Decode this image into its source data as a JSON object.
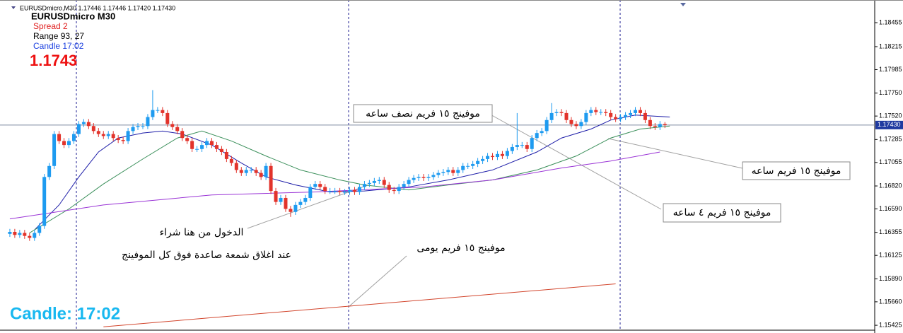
{
  "chart_data": {
    "type": "candlestick",
    "title": "EURUSDmicro,M30  1.17446 1.17446 1.17420 1.17430",
    "info": {
      "symbol": "EURUSDmicro  M30",
      "spread": "Spread  2",
      "range": "Range   93, 27",
      "candle": "Candle  17:02",
      "price": "1.1743",
      "big_candle": "Candle:  17:02"
    },
    "up_color": "#1e9bf0",
    "down_color": "#e2332b",
    "xlim": [
      -2,
      175.6
    ],
    "ylim": [
      1.15376,
      1.18682
    ],
    "yticks": [
      1.18455,
      {
        "value": 1.18215,
        "label": "1.18215"
      },
      1.17985,
      {
        "value": 1.1775,
        "label": "1.17750"
      },
      {
        "value": 1.1752,
        "label": "1.17520"
      },
      1.17285,
      1.17055,
      {
        "value": 1.1682,
        "label": "1.16820"
      },
      {
        "value": 1.1659,
        "label": "1.16590"
      },
      1.16355,
      1.16125,
      {
        "value": 1.1589,
        "label": "1.15890"
      },
      {
        "value": 1.1566,
        "label": "1.15660"
      },
      1.15425
    ],
    "price_line": {
      "value": 1.1743,
      "label": "1.17430"
    },
    "open": [
      1.1634,
      1.1636,
      1.1633,
      1.1635,
      1.1632,
      1.163,
      1.1635,
      1.1642,
      1.1691,
      1.1702,
      1.1734,
      1.1727,
      1.1723,
      1.1727,
      1.1734,
      1.1744,
      1.1746,
      1.1742,
      1.1737,
      1.1734,
      1.1732,
      1.1734,
      1.173,
      1.1728,
      1.1727,
      1.1737,
      1.1741,
      1.1742,
      1.1742,
      1.1751,
      1.1758,
      1.1758,
      1.1755,
      1.1744,
      1.1741,
      1.1737,
      1.173,
      1.1727,
      1.1719,
      1.1719,
      1.1723,
      1.1727,
      1.1723,
      1.1719,
      1.1716,
      1.1709,
      1.1705,
      1.1698,
      1.1695,
      1.1698,
      1.1698,
      1.1695,
      1.1691,
      1.1702,
      1.1677,
      1.1666,
      1.167,
      1.1659,
      1.1656,
      1.1663,
      1.1666,
      1.167,
      1.1681,
      1.1684,
      1.1681,
      1.1677,
      1.1677,
      1.1677,
      1.1676,
      1.1676,
      1.1678,
      1.1676,
      1.1681,
      1.1684,
      1.1685,
      1.1687,
      1.1688,
      1.1683,
      1.1678,
      1.1677,
      1.1681,
      1.1684,
      1.1688,
      1.169,
      1.1691,
      1.169,
      1.1691,
      1.1693,
      1.1695,
      1.1696,
      1.1698,
      1.1695,
      1.1698,
      1.1702,
      1.1702,
      1.1704,
      1.1707,
      1.1709,
      1.1712,
      1.1711,
      1.1714,
      1.1712,
      1.1717,
      1.1721,
      1.1723,
      1.1723,
      1.1719,
      1.173,
      1.1735,
      1.1737,
      1.1748,
      1.1755,
      1.1756,
      1.1755,
      1.1748,
      1.1744,
      1.1742,
      1.1746,
      1.1755,
      1.1758,
      1.1756,
      1.1756,
      1.1755,
      1.1751,
      1.1749,
      1.1751,
      1.1753,
      1.1755,
      1.1758,
      1.1755,
      1.1748,
      1.1742,
      1.1741,
      1.1744
    ],
    "high": [
      1.1639,
      1.1639,
      1.1638,
      1.1638,
      1.1635,
      1.1638,
      1.1645,
      1.1694,
      1.1705,
      1.1737,
      1.1737,
      1.173,
      1.173,
      1.1737,
      1.1747,
      1.1749,
      1.1749,
      1.1745,
      1.174,
      1.1737,
      1.1737,
      1.1737,
      1.1733,
      1.1731,
      1.174,
      1.1744,
      1.1745,
      1.1745,
      1.1754,
      1.1778,
      1.1761,
      1.1761,
      1.1758,
      1.1747,
      1.1744,
      1.174,
      1.1733,
      1.173,
      1.1722,
      1.1726,
      1.173,
      1.173,
      1.1726,
      1.1722,
      1.1719,
      1.1712,
      1.1708,
      1.1701,
      1.1701,
      1.1701,
      1.1701,
      1.1698,
      1.1705,
      1.1705,
      1.168,
      1.1673,
      1.1673,
      1.1662,
      1.1666,
      1.1669,
      1.1673,
      1.1684,
      1.1687,
      1.1687,
      1.1684,
      1.168,
      1.168,
      1.168,
      1.1679,
      1.1681,
      1.1681,
      1.1684,
      1.1687,
      1.1688,
      1.169,
      1.1691,
      1.1691,
      1.1686,
      1.1681,
      1.1684,
      1.1687,
      1.1691,
      1.1693,
      1.1694,
      1.1694,
      1.1694,
      1.1696,
      1.1698,
      1.1699,
      1.1701,
      1.1701,
      1.1701,
      1.1705,
      1.1705,
      1.1707,
      1.171,
      1.1712,
      1.1715,
      1.1715,
      1.1717,
      1.1717,
      1.172,
      1.1724,
      1.1755,
      1.1726,
      1.1726,
      1.1733,
      1.1738,
      1.174,
      1.1751,
      1.1765,
      1.1759,
      1.1759,
      1.1758,
      1.1751,
      1.1747,
      1.1749,
      1.1758,
      1.1761,
      1.1761,
      1.1759,
      1.1759,
      1.1758,
      1.1754,
      1.1754,
      1.1756,
      1.1758,
      1.1761,
      1.1761,
      1.1758,
      1.1751,
      1.1745,
      1.1747,
      1.1746
    ],
    "low": [
      1.1631,
      1.163,
      1.163,
      1.1629,
      1.1627,
      1.1627,
      1.1632,
      1.1639,
      1.1688,
      1.1699,
      1.1724,
      1.172,
      1.172,
      1.1724,
      1.1731,
      1.1741,
      1.1739,
      1.1734,
      1.1731,
      1.1729,
      1.1729,
      1.1727,
      1.1725,
      1.1724,
      1.1724,
      1.1734,
      1.1738,
      1.1739,
      1.1739,
      1.1748,
      1.1755,
      1.1752,
      1.1741,
      1.1738,
      1.1734,
      1.1727,
      1.1724,
      1.1716,
      1.1716,
      1.1716,
      1.172,
      1.172,
      1.1716,
      1.1713,
      1.1706,
      1.1702,
      1.1695,
      1.1692,
      1.1692,
      1.1695,
      1.1692,
      1.1688,
      1.1688,
      1.1674,
      1.1663,
      1.1663,
      1.1656,
      1.1651,
      1.1653,
      1.166,
      1.1663,
      1.1667,
      1.1678,
      1.1678,
      1.1674,
      1.1674,
      1.1674,
      1.1673,
      1.1673,
      1.1673,
      1.1673,
      1.1673,
      1.1678,
      1.1681,
      1.1682,
      1.1684,
      1.168,
      1.1675,
      1.1674,
      1.1674,
      1.1678,
      1.1681,
      1.1685,
      1.1687,
      1.1687,
      1.1687,
      1.1688,
      1.169,
      1.1692,
      1.1693,
      1.1692,
      1.1692,
      1.1695,
      1.1699,
      1.1699,
      1.1701,
      1.1704,
      1.1706,
      1.1708,
      1.1708,
      1.1709,
      1.1709,
      1.1714,
      1.1718,
      1.172,
      1.1716,
      1.1716,
      1.1727,
      1.1732,
      1.1734,
      1.1745,
      1.1752,
      1.1752,
      1.1745,
      1.1741,
      1.1739,
      1.1739,
      1.1743,
      1.1752,
      1.1753,
      1.1753,
      1.1752,
      1.1748,
      1.1746,
      1.1746,
      1.1748,
      1.175,
      1.1752,
      1.1752,
      1.1745,
      1.1739,
      1.1738,
      1.1738,
      1.174
    ],
    "close": [
      1.1636,
      1.1633,
      1.1635,
      1.1632,
      1.163,
      1.1635,
      1.1642,
      1.1691,
      1.1702,
      1.1734,
      1.1727,
      1.1723,
      1.1727,
      1.1734,
      1.1744,
      1.1746,
      1.1742,
      1.1737,
      1.1734,
      1.1732,
      1.1734,
      1.173,
      1.1728,
      1.1727,
      1.1737,
      1.1741,
      1.1742,
      1.1742,
      1.1751,
      1.1758,
      1.1758,
      1.1755,
      1.1744,
      1.1741,
      1.1737,
      1.173,
      1.1727,
      1.1719,
      1.1719,
      1.1723,
      1.1727,
      1.1723,
      1.1719,
      1.1716,
      1.1709,
      1.1705,
      1.1698,
      1.1695,
      1.1698,
      1.1698,
      1.1695,
      1.1691,
      1.1702,
      1.1677,
      1.1666,
      1.167,
      1.1659,
      1.1656,
      1.1663,
      1.1666,
      1.167,
      1.1681,
      1.1684,
      1.1681,
      1.1677,
      1.1677,
      1.1677,
      1.1676,
      1.1676,
      1.1678,
      1.1676,
      1.1681,
      1.1684,
      1.1685,
      1.1687,
      1.1688,
      1.1683,
      1.1678,
      1.1677,
      1.1681,
      1.1684,
      1.1688,
      1.169,
      1.1691,
      1.169,
      1.1691,
      1.1693,
      1.1695,
      1.1696,
      1.1698,
      1.1695,
      1.1698,
      1.1702,
      1.1702,
      1.1704,
      1.1707,
      1.1709,
      1.1712,
      1.1711,
      1.1714,
      1.1712,
      1.1717,
      1.1721,
      1.1723,
      1.1723,
      1.1719,
      1.173,
      1.1735,
      1.1737,
      1.1748,
      1.1755,
      1.1756,
      1.1755,
      1.1748,
      1.1744,
      1.1742,
      1.1746,
      1.1755,
      1.1758,
      1.1756,
      1.1756,
      1.1755,
      1.1751,
      1.1749,
      1.1751,
      1.1753,
      1.1755,
      1.1758,
      1.1755,
      1.1748,
      1.1742,
      1.1741,
      1.1744,
      1.1743
    ],
    "series": [
      {
        "color": "#1c1ca8",
        "x": [
          5,
          10,
          14,
          18,
          22,
          27,
          31,
          35,
          41,
          47,
          52,
          58,
          65,
          72,
          81,
          89,
          98,
          107,
          112,
          118,
          122,
          127,
          134
        ],
        "values": [
          1.1638,
          1.1663,
          1.1691,
          1.1716,
          1.173,
          1.1735,
          1.1737,
          1.1734,
          1.1723,
          1.1705,
          1.1691,
          1.1683,
          1.1676,
          1.1677,
          1.1681,
          1.1688,
          1.1698,
          1.1716,
          1.173,
          1.1739,
          1.1748,
          1.1753,
          1.1751
        ]
      },
      {
        "color": "#3a8f5a",
        "x": [
          4,
          12,
          19,
          27,
          34,
          39,
          45,
          52,
          59,
          67,
          72,
          81,
          89,
          98,
          107,
          115,
          122,
          128,
          134
        ],
        "values": [
          1.1635,
          1.1659,
          1.1684,
          1.1709,
          1.173,
          1.1737,
          1.1727,
          1.1712,
          1.1698,
          1.1688,
          1.1683,
          1.1678,
          1.1683,
          1.1688,
          1.1698,
          1.1712,
          1.173,
          1.1739,
          1.1742
        ]
      },
      {
        "color": "#9a34d6",
        "x": [
          0,
          19,
          41,
          62,
          84,
          98,
          112,
          122,
          132
        ],
        "values": [
          1.1649,
          1.1663,
          1.1673,
          1.1676,
          1.1681,
          1.1688,
          1.17,
          1.1707,
          1.1716
        ]
      },
      {
        "color": "#d2452c",
        "x": [
          19,
          123
        ],
        "values": [
          1.1541,
          1.1584
        ]
      }
    ],
    "annotations": [
      "موفينج ١٥ فريم نصف ساعه",
      "موفينج ١٥ فريم ساعه",
      "موفينج ١٥ فريم ٤ ساعه",
      "الدخول من هنا شراء",
      "عند اغلاق شمعة صاعدة فوق كل الموفينج",
      "موفينج ١٥ فريم يومى"
    ]
  }
}
